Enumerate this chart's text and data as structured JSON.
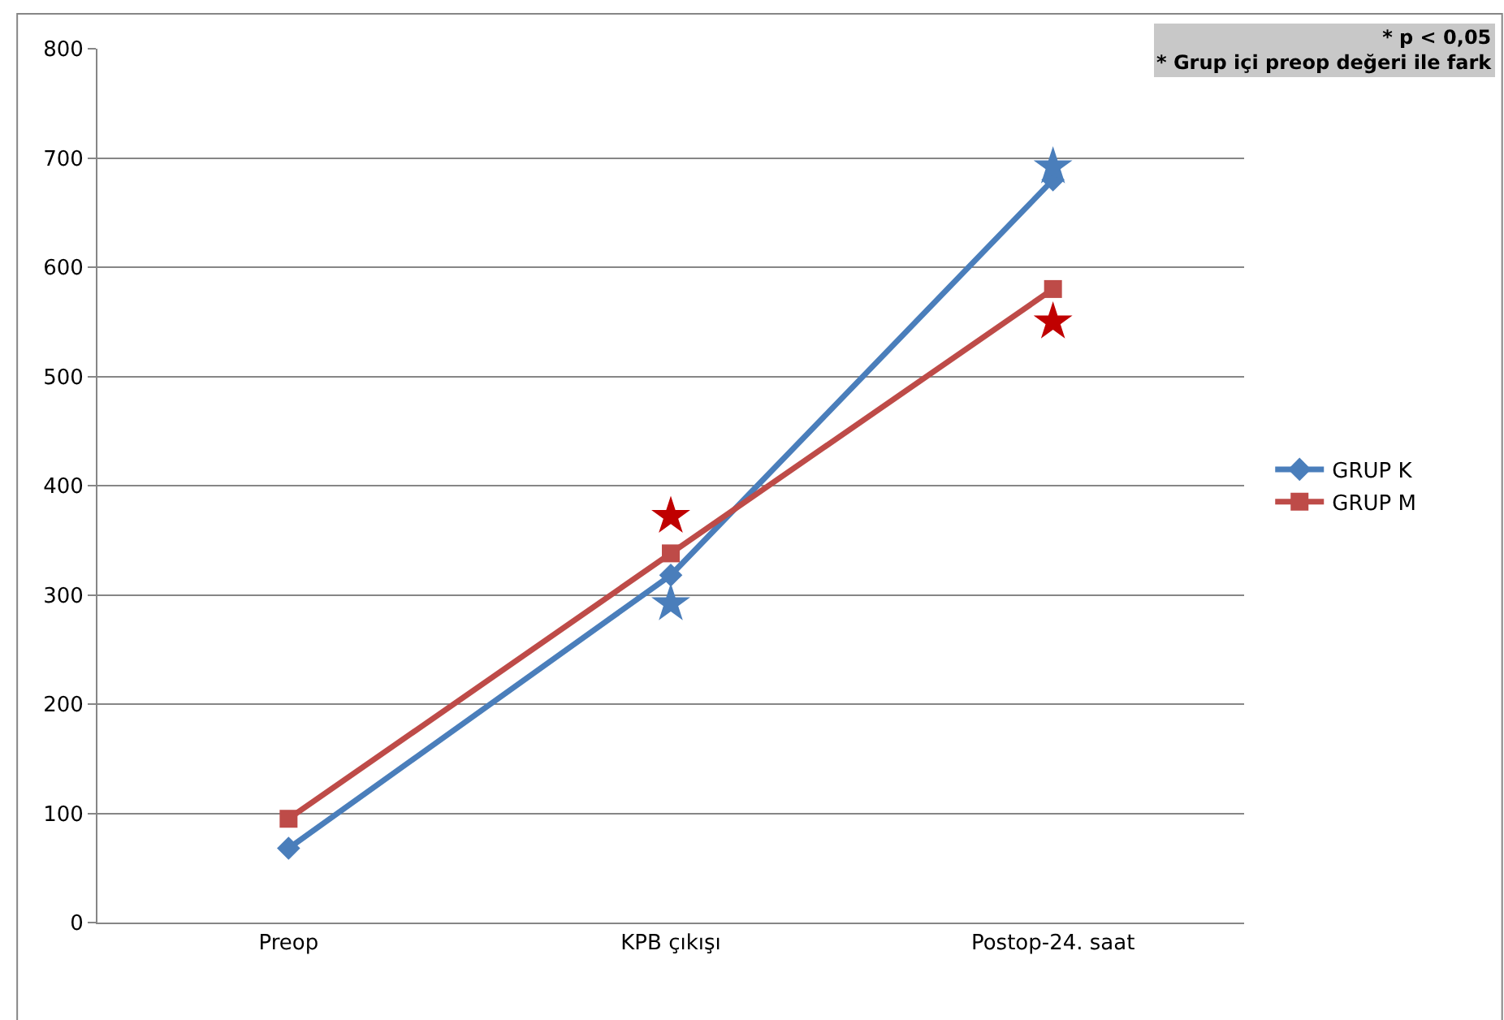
{
  "chart_data": {
    "type": "line",
    "categories": [
      "Preop",
      "KPB çıkışı",
      "Postop-24. saat"
    ],
    "series": [
      {
        "name": "GRUP K",
        "color": "#4a7ebb",
        "values": [
          68,
          318,
          680
        ],
        "marker": "diamond"
      },
      {
        "name": "GRUP M",
        "color": "#be4b48",
        "values": [
          95,
          338,
          580
        ],
        "marker": "square"
      },
      {
        "type": "scatter",
        "color": "#4a7ebb",
        "values": [
          null,
          292,
          692
        ],
        "marker": "star"
      },
      {
        "type": "scatter",
        "color": "#c00000",
        "values": [
          null,
          372,
          550
        ],
        "marker": "star"
      }
    ],
    "ylim": [
      0,
      800
    ],
    "yticks": [
      0,
      100,
      200,
      300,
      400,
      500,
      600,
      700,
      800
    ],
    "grid": "y",
    "legend": "right",
    "annotations": [
      "* p < 0,05",
      "* Grup içi preop değeri ile fark"
    ]
  }
}
